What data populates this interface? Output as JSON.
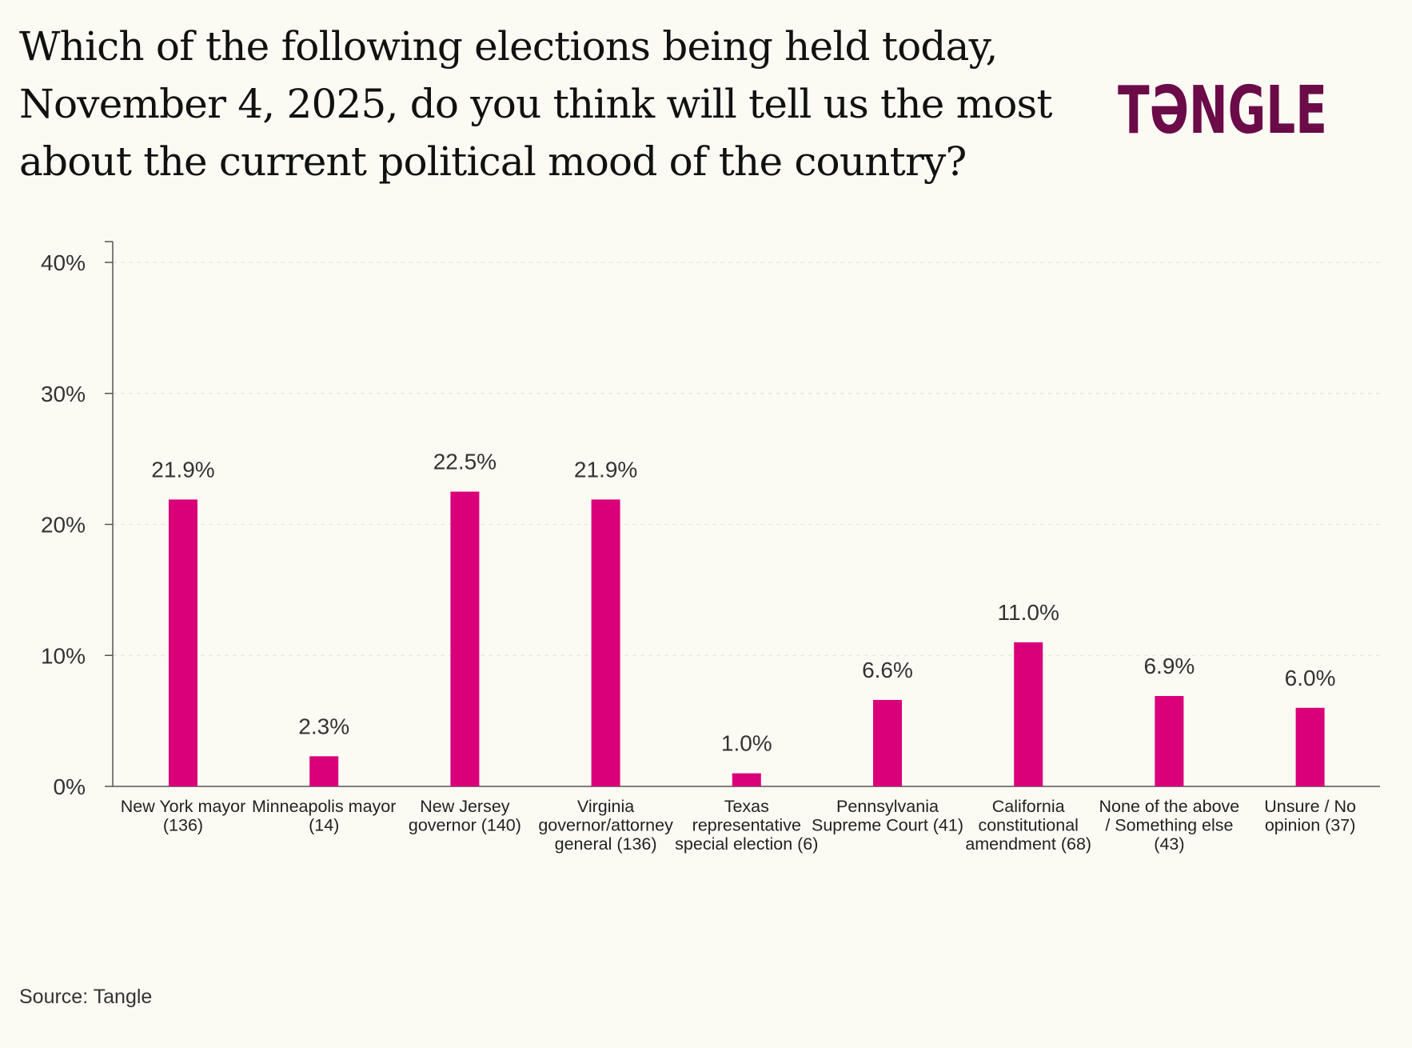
{
  "title": "Which of the following elections being held today, November 4, 2025, do you think will tell us the most about the current political mood of the country?",
  "logo_text": "TƏNGLE",
  "source": "Source: Tangle",
  "colors": {
    "background": "#fcfbf3",
    "bar": "#d9007a",
    "logo": "#6b0b48",
    "axis": "#555555",
    "grid": "#e7e5dc"
  },
  "chart_data": {
    "type": "bar",
    "title": "Which of the following elections being held today, November 4, 2025, do you think will tell us the most about the current political mood of the country?",
    "xlabel": "",
    "ylabel": "",
    "ylim": [
      0,
      40
    ],
    "yticks": [
      0,
      10,
      20,
      30,
      40
    ],
    "ytick_labels": [
      "0%",
      "10%",
      "20%",
      "30%",
      "40%"
    ],
    "grid": "horizontal dashed",
    "legend": "none",
    "categories": [
      "New York mayor (136)",
      "Minneapolis mayor (14)",
      "New Jersey governor (140)",
      "Virginia governor/attorney general (136)",
      "Texas representative special election (6)",
      "Pennsylvania Supreme Court (41)",
      "California constitutional amendment (68)",
      "None of the above / Something else (43)",
      "Unsure / No opinion (37)"
    ],
    "category_label_lines": [
      [
        "New York mayor",
        "(136)"
      ],
      [
        "Minneapolis mayor",
        "(14)"
      ],
      [
        "New Jersey",
        "governor (140)"
      ],
      [
        "Virginia",
        "governor/attorney",
        "general (136)"
      ],
      [
        "Texas",
        "representative",
        "special election (6)"
      ],
      [
        "Pennsylvania",
        "Supreme Court (41)"
      ],
      [
        "California",
        "constitutional",
        "amendment (68)"
      ],
      [
        "None of the above",
        "/ Something else",
        "(43)"
      ],
      [
        "Unsure / No",
        "opinion (37)"
      ]
    ],
    "values": [
      21.9,
      2.3,
      22.5,
      21.9,
      1.0,
      6.6,
      11.0,
      6.9,
      6.0
    ],
    "value_labels": [
      "21.9%",
      "2.3%",
      "22.5%",
      "21.9%",
      "1.0%",
      "6.6%",
      "11.0%",
      "6.9%",
      "6.0%"
    ]
  }
}
